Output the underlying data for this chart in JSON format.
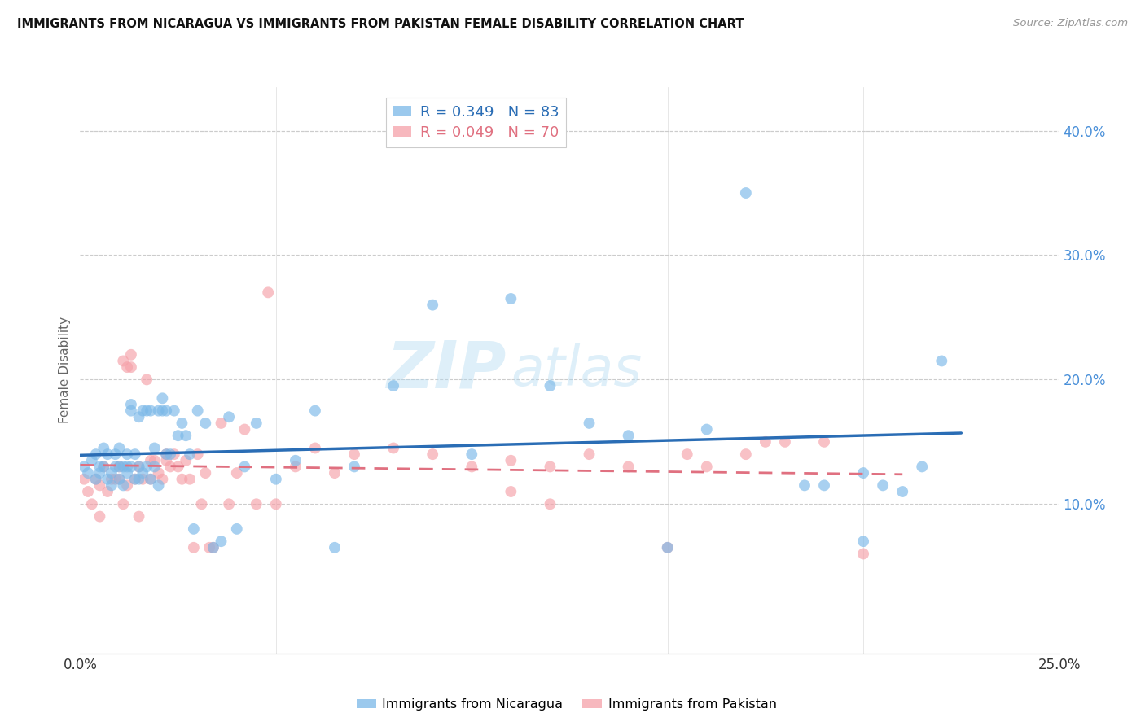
{
  "title": "IMMIGRANTS FROM NICARAGUA VS IMMIGRANTS FROM PAKISTAN FEMALE DISABILITY CORRELATION CHART",
  "source": "Source: ZipAtlas.com",
  "ylabel": "Female Disability",
  "y_ticks": [
    0.0,
    0.1,
    0.2,
    0.3,
    0.4
  ],
  "y_tick_labels": [
    "",
    "10.0%",
    "20.0%",
    "30.0%",
    "40.0%"
  ],
  "x_range": [
    0.0,
    0.25
  ],
  "y_range": [
    -0.02,
    0.435
  ],
  "nicaragua_color": "#7ab8e8",
  "pakistan_color": "#f5a0a8",
  "nicaragua_line_color": "#2a6db5",
  "pakistan_line_color": "#e07080",
  "nicaragua_R": 0.349,
  "nicaragua_N": 83,
  "pakistan_R": 0.049,
  "pakistan_N": 70,
  "watermark_zip": "ZIP",
  "watermark_atlas": "atlas",
  "nicaragua_x": [
    0.001,
    0.002,
    0.003,
    0.004,
    0.004,
    0.005,
    0.005,
    0.006,
    0.006,
    0.007,
    0.007,
    0.008,
    0.008,
    0.009,
    0.009,
    0.01,
    0.01,
    0.01,
    0.011,
    0.011,
    0.012,
    0.012,
    0.012,
    0.013,
    0.013,
    0.013,
    0.014,
    0.014,
    0.015,
    0.015,
    0.015,
    0.016,
    0.016,
    0.017,
    0.017,
    0.018,
    0.018,
    0.019,
    0.019,
    0.02,
    0.02,
    0.021,
    0.021,
    0.022,
    0.022,
    0.023,
    0.024,
    0.025,
    0.026,
    0.027,
    0.028,
    0.029,
    0.03,
    0.032,
    0.034,
    0.036,
    0.038,
    0.04,
    0.042,
    0.045,
    0.05,
    0.055,
    0.06,
    0.065,
    0.07,
    0.08,
    0.09,
    0.1,
    0.11,
    0.12,
    0.13,
    0.14,
    0.15,
    0.16,
    0.17,
    0.185,
    0.19,
    0.2,
    0.205,
    0.21,
    0.215,
    0.22,
    0.2
  ],
  "nicaragua_y": [
    0.13,
    0.125,
    0.135,
    0.12,
    0.14,
    0.125,
    0.13,
    0.13,
    0.145,
    0.12,
    0.14,
    0.115,
    0.125,
    0.13,
    0.14,
    0.12,
    0.13,
    0.145,
    0.115,
    0.13,
    0.125,
    0.13,
    0.14,
    0.175,
    0.18,
    0.13,
    0.12,
    0.14,
    0.12,
    0.13,
    0.17,
    0.125,
    0.175,
    0.13,
    0.175,
    0.12,
    0.175,
    0.13,
    0.145,
    0.115,
    0.175,
    0.175,
    0.185,
    0.14,
    0.175,
    0.14,
    0.175,
    0.155,
    0.165,
    0.155,
    0.14,
    0.08,
    0.175,
    0.165,
    0.065,
    0.07,
    0.17,
    0.08,
    0.13,
    0.165,
    0.12,
    0.135,
    0.175,
    0.065,
    0.13,
    0.195,
    0.26,
    0.14,
    0.265,
    0.195,
    0.165,
    0.155,
    0.065,
    0.16,
    0.35,
    0.115,
    0.115,
    0.07,
    0.115,
    0.11,
    0.13,
    0.215,
    0.125
  ],
  "pakistan_x": [
    0.001,
    0.002,
    0.003,
    0.004,
    0.005,
    0.005,
    0.006,
    0.007,
    0.008,
    0.009,
    0.01,
    0.01,
    0.011,
    0.011,
    0.012,
    0.012,
    0.013,
    0.013,
    0.014,
    0.015,
    0.015,
    0.016,
    0.017,
    0.018,
    0.018,
    0.019,
    0.02,
    0.021,
    0.022,
    0.022,
    0.023,
    0.024,
    0.025,
    0.026,
    0.027,
    0.028,
    0.029,
    0.03,
    0.031,
    0.032,
    0.033,
    0.034,
    0.036,
    0.038,
    0.04,
    0.042,
    0.045,
    0.048,
    0.05,
    0.055,
    0.06,
    0.065,
    0.07,
    0.08,
    0.09,
    0.1,
    0.11,
    0.12,
    0.13,
    0.14,
    0.15,
    0.155,
    0.16,
    0.17,
    0.175,
    0.18,
    0.19,
    0.2,
    0.11,
    0.12
  ],
  "pakistan_y": [
    0.12,
    0.11,
    0.1,
    0.12,
    0.115,
    0.09,
    0.13,
    0.11,
    0.12,
    0.12,
    0.12,
    0.13,
    0.1,
    0.215,
    0.115,
    0.21,
    0.22,
    0.21,
    0.12,
    0.09,
    0.13,
    0.12,
    0.2,
    0.12,
    0.135,
    0.135,
    0.125,
    0.12,
    0.135,
    0.14,
    0.13,
    0.14,
    0.13,
    0.12,
    0.135,
    0.12,
    0.065,
    0.14,
    0.1,
    0.125,
    0.065,
    0.065,
    0.165,
    0.1,
    0.125,
    0.16,
    0.1,
    0.27,
    0.1,
    0.13,
    0.145,
    0.125,
    0.14,
    0.145,
    0.14,
    0.13,
    0.11,
    0.1,
    0.14,
    0.13,
    0.065,
    0.14,
    0.13,
    0.14,
    0.15,
    0.15,
    0.15,
    0.06,
    0.135,
    0.13
  ]
}
